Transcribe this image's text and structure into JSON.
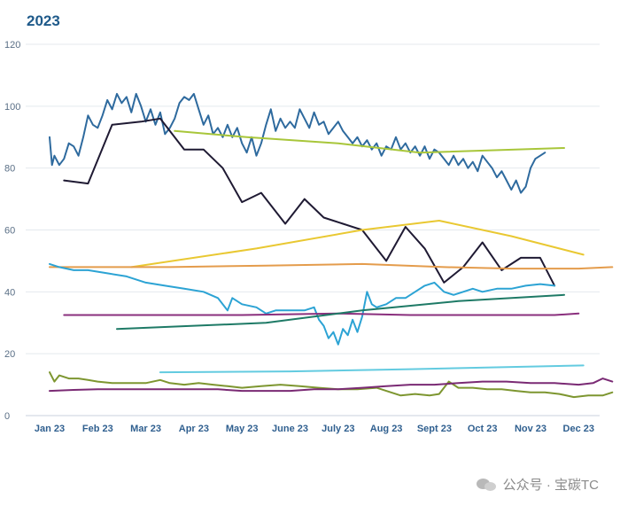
{
  "chart_data": {
    "type": "line",
    "title": "2023",
    "xlabel": "",
    "ylabel": "",
    "ylim": [
      0,
      120
    ],
    "yticks": [
      0,
      20,
      40,
      60,
      80,
      100,
      120
    ],
    "grid": true,
    "legend": "none",
    "categories": [
      "Jan 23",
      "Feb 23",
      "Mar 23",
      "Apr 23",
      "May 23",
      "June 23",
      "July 23",
      "Aug 23",
      "Sept 23",
      "Oct 23",
      "Nov 23",
      "Dec 23"
    ],
    "series": [
      {
        "name": "dark-blue-volatile",
        "color": "#2e6a9e",
        "width": 2,
        "points": [
          [
            0,
            90
          ],
          [
            0.05,
            81
          ],
          [
            0.1,
            84
          ],
          [
            0.2,
            81
          ],
          [
            0.3,
            83
          ],
          [
            0.4,
            88
          ],
          [
            0.5,
            87
          ],
          [
            0.6,
            84
          ],
          [
            0.7,
            90
          ],
          [
            0.8,
            97
          ],
          [
            0.9,
            94
          ],
          [
            1,
            93
          ],
          [
            1.1,
            97
          ],
          [
            1.2,
            102
          ],
          [
            1.3,
            99
          ],
          [
            1.4,
            104
          ],
          [
            1.5,
            101
          ],
          [
            1.6,
            103
          ],
          [
            1.7,
            98
          ],
          [
            1.8,
            104
          ],
          [
            1.9,
            100
          ],
          [
            2,
            95
          ],
          [
            2.1,
            99
          ],
          [
            2.2,
            94
          ],
          [
            2.3,
            98
          ],
          [
            2.4,
            91
          ],
          [
            2.5,
            93
          ],
          [
            2.6,
            96
          ],
          [
            2.7,
            101
          ],
          [
            2.8,
            103
          ],
          [
            2.9,
            102
          ],
          [
            3,
            104
          ],
          [
            3.1,
            99
          ],
          [
            3.2,
            94
          ],
          [
            3.3,
            97
          ],
          [
            3.4,
            91
          ],
          [
            3.5,
            93
          ],
          [
            3.6,
            90
          ],
          [
            3.7,
            94
          ],
          [
            3.8,
            90
          ],
          [
            3.9,
            93
          ],
          [
            4,
            88
          ],
          [
            4.1,
            85
          ],
          [
            4.2,
            90
          ],
          [
            4.3,
            84
          ],
          [
            4.4,
            88
          ],
          [
            4.5,
            94
          ],
          [
            4.6,
            99
          ],
          [
            4.7,
            92
          ],
          [
            4.8,
            96
          ],
          [
            4.9,
            93
          ],
          [
            5,
            95
          ],
          [
            5.1,
            93
          ],
          [
            5.2,
            99
          ],
          [
            5.3,
            96
          ],
          [
            5.4,
            93
          ],
          [
            5.5,
            98
          ],
          [
            5.6,
            94
          ],
          [
            5.7,
            95
          ],
          [
            5.8,
            91
          ],
          [
            5.9,
            93
          ],
          [
            6,
            95
          ],
          [
            6.1,
            92
          ],
          [
            6.2,
            90
          ],
          [
            6.3,
            88
          ],
          [
            6.4,
            90
          ],
          [
            6.5,
            87
          ],
          [
            6.6,
            89
          ],
          [
            6.7,
            86
          ],
          [
            6.8,
            88
          ],
          [
            6.9,
            84
          ],
          [
            7,
            87
          ],
          [
            7.1,
            86
          ],
          [
            7.2,
            90
          ],
          [
            7.3,
            86
          ],
          [
            7.4,
            88
          ],
          [
            7.5,
            85
          ],
          [
            7.6,
            87
          ],
          [
            7.7,
            84
          ],
          [
            7.8,
            87
          ],
          [
            7.9,
            83
          ],
          [
            8,
            86
          ],
          [
            8.1,
            85
          ],
          [
            8.2,
            83
          ],
          [
            8.3,
            81
          ],
          [
            8.4,
            84
          ],
          [
            8.5,
            81
          ],
          [
            8.6,
            83
          ],
          [
            8.7,
            80
          ],
          [
            8.8,
            82
          ],
          [
            8.9,
            79
          ],
          [
            9,
            84
          ],
          [
            9.1,
            82
          ],
          [
            9.2,
            80
          ],
          [
            9.3,
            77
          ],
          [
            9.4,
            79
          ],
          [
            9.5,
            76
          ],
          [
            9.6,
            73
          ],
          [
            9.7,
            76
          ],
          [
            9.8,
            72
          ],
          [
            9.9,
            74
          ],
          [
            10,
            80
          ],
          [
            10.1,
            83
          ],
          [
            10.2,
            84
          ],
          [
            10.3,
            85
          ]
        ]
      },
      {
        "name": "black",
        "color": "#1f1a33",
        "width": 2,
        "points": [
          [
            0.3,
            76
          ],
          [
            0.8,
            75
          ],
          [
            1.3,
            94
          ],
          [
            1.9,
            95
          ],
          [
            2.3,
            96
          ],
          [
            2.8,
            86
          ],
          [
            3.2,
            86
          ],
          [
            3.6,
            80
          ],
          [
            4,
            69
          ],
          [
            4.4,
            72
          ],
          [
            4.9,
            62
          ],
          [
            5.3,
            70
          ],
          [
            5.7,
            64
          ],
          [
            6.1,
            62
          ],
          [
            6.5,
            60
          ],
          [
            7,
            50
          ],
          [
            7.4,
            61
          ],
          [
            7.8,
            54
          ],
          [
            8.2,
            43
          ],
          [
            8.6,
            48
          ],
          [
            9,
            56
          ],
          [
            9.4,
            47
          ],
          [
            9.8,
            51
          ],
          [
            10.2,
            51
          ],
          [
            10.5,
            42
          ]
        ]
      },
      {
        "name": "yellow-green",
        "color": "#a8c63a",
        "width": 2,
        "points": [
          [
            2.6,
            92
          ],
          [
            4.1,
            90
          ],
          [
            6,
            88
          ],
          [
            7.7,
            85
          ],
          [
            10.7,
            86.5
          ]
        ]
      },
      {
        "name": "yellow",
        "color": "#e9c832",
        "width": 2,
        "points": [
          [
            1.7,
            48
          ],
          [
            4.3,
            54
          ],
          [
            6.5,
            60
          ],
          [
            8.1,
            63
          ],
          [
            9.6,
            58
          ],
          [
            11.1,
            52
          ]
        ]
      },
      {
        "name": "orange",
        "color": "#e49c4c",
        "width": 2,
        "points": [
          [
            0,
            48
          ],
          [
            2.5,
            48
          ],
          [
            4.5,
            48.5
          ],
          [
            6.5,
            49
          ],
          [
            8.2,
            48
          ],
          [
            9.6,
            47.5
          ],
          [
            11,
            47.5
          ],
          [
            11.7,
            48
          ]
        ]
      },
      {
        "name": "light-blue-volatile",
        "color": "#2ca3d4",
        "width": 2,
        "points": [
          [
            0,
            49
          ],
          [
            0.2,
            48
          ],
          [
            0.5,
            47
          ],
          [
            0.8,
            47
          ],
          [
            1.2,
            46
          ],
          [
            1.6,
            45
          ],
          [
            2,
            43
          ],
          [
            2.4,
            42
          ],
          [
            2.8,
            41
          ],
          [
            3.2,
            40
          ],
          [
            3.5,
            38
          ],
          [
            3.7,
            34
          ],
          [
            3.8,
            38
          ],
          [
            4,
            36
          ],
          [
            4.3,
            35
          ],
          [
            4.5,
            33
          ],
          [
            4.7,
            34
          ],
          [
            5,
            34
          ],
          [
            5.3,
            34
          ],
          [
            5.5,
            35
          ],
          [
            5.6,
            31
          ],
          [
            5.7,
            29
          ],
          [
            5.8,
            25
          ],
          [
            5.9,
            27
          ],
          [
            6,
            23
          ],
          [
            6.1,
            28
          ],
          [
            6.2,
            26
          ],
          [
            6.3,
            31
          ],
          [
            6.4,
            27
          ],
          [
            6.5,
            32
          ],
          [
            6.6,
            40
          ],
          [
            6.7,
            36
          ],
          [
            6.8,
            35
          ],
          [
            7,
            36
          ],
          [
            7.2,
            38
          ],
          [
            7.4,
            38
          ],
          [
            7.6,
            40
          ],
          [
            7.8,
            42
          ],
          [
            8,
            43
          ],
          [
            8.2,
            40
          ],
          [
            8.4,
            39
          ],
          [
            8.6,
            40
          ],
          [
            8.8,
            41
          ],
          [
            9.0,
            40
          ],
          [
            9.3,
            41
          ],
          [
            9.6,
            41
          ],
          [
            9.9,
            42
          ],
          [
            10.2,
            42.5
          ],
          [
            10.5,
            42
          ]
        ]
      },
      {
        "name": "purple",
        "color": "#8a2f7d",
        "width": 2,
        "points": [
          [
            0.3,
            32.5
          ],
          [
            2,
            32.5
          ],
          [
            4,
            32.5
          ],
          [
            6,
            33
          ],
          [
            7.5,
            32.5
          ],
          [
            9,
            32.5
          ],
          [
            10.5,
            32.5
          ],
          [
            11,
            33
          ]
        ]
      },
      {
        "name": "teal",
        "color": "#1e7a66",
        "width": 2,
        "points": [
          [
            1.4,
            28
          ],
          [
            4.5,
            30
          ],
          [
            6.5,
            34
          ],
          [
            8.5,
            37
          ],
          [
            10.7,
            39
          ]
        ]
      },
      {
        "name": "sky-blue",
        "color": "#63cbe0",
        "width": 2,
        "points": [
          [
            2.3,
            14
          ],
          [
            5,
            14.3
          ],
          [
            7.5,
            15
          ],
          [
            9.5,
            15.7
          ],
          [
            11.1,
            16.2
          ]
        ]
      },
      {
        "name": "olive",
        "color": "#7d9630",
        "width": 2,
        "points": [
          [
            0,
            14
          ],
          [
            0.1,
            11
          ],
          [
            0.2,
            13
          ],
          [
            0.4,
            12
          ],
          [
            0.6,
            12
          ],
          [
            0.8,
            11.5
          ],
          [
            1,
            11
          ],
          [
            1.3,
            10.5
          ],
          [
            1.6,
            10.5
          ],
          [
            2,
            10.5
          ],
          [
            2.3,
            11.5
          ],
          [
            2.5,
            10.5
          ],
          [
            2.8,
            10
          ],
          [
            3.1,
            10.5
          ],
          [
            3.4,
            10
          ],
          [
            3.7,
            9.5
          ],
          [
            4,
            9
          ],
          [
            4.4,
            9.5
          ],
          [
            4.8,
            10
          ],
          [
            5.2,
            9.5
          ],
          [
            5.6,
            9
          ],
          [
            6,
            8.5
          ],
          [
            6.4,
            8.5
          ],
          [
            6.8,
            9
          ],
          [
            7.1,
            7.5
          ],
          [
            7.3,
            6.5
          ],
          [
            7.6,
            7
          ],
          [
            7.9,
            6.5
          ],
          [
            8.1,
            7
          ],
          [
            8.3,
            11
          ],
          [
            8.5,
            9
          ],
          [
            8.8,
            9
          ],
          [
            9.1,
            8.5
          ],
          [
            9.4,
            8.5
          ],
          [
            9.7,
            8
          ],
          [
            10,
            7.5
          ],
          [
            10.3,
            7.5
          ],
          [
            10.6,
            7
          ],
          [
            10.9,
            6
          ],
          [
            11.2,
            6.5
          ],
          [
            11.5,
            6.5
          ],
          [
            11.7,
            7.5
          ]
        ]
      },
      {
        "name": "magenta",
        "color": "#7a2a74",
        "width": 2,
        "points": [
          [
            0,
            8
          ],
          [
            0.5,
            8.3
          ],
          [
            1,
            8.5
          ],
          [
            1.5,
            8.5
          ],
          [
            2,
            8.5
          ],
          [
            2.5,
            8.5
          ],
          [
            3,
            8.5
          ],
          [
            3.5,
            8.5
          ],
          [
            4,
            8
          ],
          [
            4.5,
            8
          ],
          [
            5,
            8
          ],
          [
            5.5,
            8.5
          ],
          [
            6,
            8.5
          ],
          [
            6.5,
            9
          ],
          [
            7,
            9.5
          ],
          [
            7.5,
            10
          ],
          [
            8,
            10
          ],
          [
            8.5,
            10.5
          ],
          [
            9,
            11
          ],
          [
            9.5,
            11
          ],
          [
            10,
            10.5
          ],
          [
            10.5,
            10.5
          ],
          [
            11,
            10
          ],
          [
            11.3,
            10.5
          ],
          [
            11.5,
            12
          ],
          [
            11.7,
            11
          ]
        ]
      }
    ]
  },
  "watermark": {
    "text": "公众号 · 宝碳TC"
  }
}
